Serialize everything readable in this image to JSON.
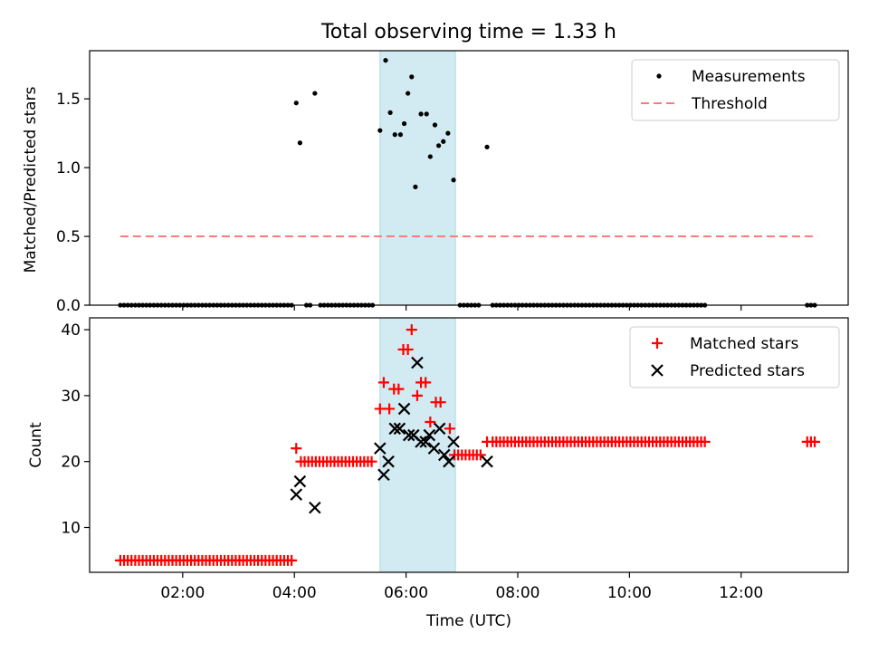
{
  "title": "Total observing time = 1.33 h",
  "chart_data": [
    {
      "type": "scatter",
      "panel": "top",
      "ylabel": "Matched/Predicted stars",
      "xlabel": "",
      "xlim": [
        "00:20",
        "13:55"
      ],
      "ylim": [
        0,
        1.85
      ],
      "yticks": [
        0.0,
        0.5,
        1.0,
        1.5
      ],
      "ytick_labels": [
        "0.0",
        "0.5",
        "1.0",
        "1.5"
      ],
      "legend_position": "top-right",
      "highlight_span": {
        "x0": "05:32",
        "x1": "06:53",
        "color": "#add8e6"
      },
      "series": [
        {
          "name": "Measurements",
          "kind": "scatter",
          "marker": "dot",
          "color": "#000000",
          "points": [
            [
              "04:02",
              1.47
            ],
            [
              "04:06",
              1.18
            ],
            [
              "04:22",
              1.54
            ],
            [
              "05:32",
              1.27
            ],
            [
              "05:38",
              1.78
            ],
            [
              "05:43",
              1.4
            ],
            [
              "05:48",
              1.24
            ],
            [
              "05:54",
              1.24
            ],
            [
              "05:58",
              1.32
            ],
            [
              "06:02",
              1.54
            ],
            [
              "06:06",
              1.66
            ],
            [
              "06:10",
              0.86
            ],
            [
              "06:16",
              1.39
            ],
            [
              "06:22",
              1.39
            ],
            [
              "06:26",
              1.08
            ],
            [
              "06:31",
              1.31
            ],
            [
              "06:35",
              1.16
            ],
            [
              "06:40",
              1.19
            ],
            [
              "06:45",
              1.25
            ],
            [
              "06:51",
              0.91
            ],
            [
              "07:27",
              1.15
            ]
          ],
          "zero_points": {
            "value": 0,
            "ranges": [
              {
                "start": "00:53",
                "end": "03:57",
                "step_min": 4
              },
              {
                "start": "04:13",
                "end": "04:18",
                "step_min": 4
              },
              {
                "start": "04:28",
                "end": "05:25",
                "step_min": 4
              },
              {
                "start": "06:58",
                "end": "07:21",
                "step_min": 4
              },
              {
                "start": "07:33",
                "end": "11:22",
                "step_min": 4
              },
              {
                "start": "13:11",
                "end": "13:22",
                "step_min": 4
              }
            ]
          }
        },
        {
          "name": "Threshold",
          "kind": "line",
          "dash": "dashed",
          "color": "#ff7b7b",
          "x": [
            "00:53",
            "13:22"
          ],
          "y": [
            0.5,
            0.5
          ]
        }
      ]
    },
    {
      "type": "scatter",
      "panel": "bottom",
      "ylabel": "Count",
      "xlabel": "Time (UTC)",
      "xlim": [
        "00:20",
        "13:55"
      ],
      "ylim": [
        3.2,
        41.8
      ],
      "yticks": [
        10,
        20,
        30,
        40
      ],
      "ytick_labels": [
        "10",
        "20",
        "30",
        "40"
      ],
      "xticks": [
        "02:00",
        "04:00",
        "06:00",
        "08:00",
        "10:00",
        "12:00"
      ],
      "xtick_labels": [
        "02:00",
        "04:00",
        "06:00",
        "08:00",
        "10:00",
        "12:00"
      ],
      "legend_position": "top-right",
      "highlight_span": {
        "x0": "05:32",
        "x1": "06:53",
        "color": "#add8e6"
      },
      "series": [
        {
          "name": "Matched stars",
          "kind": "scatter",
          "marker": "plus",
          "color": "#ff0000",
          "points": [
            [
              "04:02",
              22
            ],
            [
              "05:32",
              28
            ],
            [
              "05:36",
              32
            ],
            [
              "05:42",
              28
            ],
            [
              "05:47",
              31
            ],
            [
              "05:52",
              31
            ],
            [
              "05:57",
              37
            ],
            [
              "06:02",
              37
            ],
            [
              "06:06",
              40
            ],
            [
              "06:12",
              30
            ],
            [
              "06:16",
              32
            ],
            [
              "06:21",
              32
            ],
            [
              "06:26",
              26
            ],
            [
              "06:32",
              29
            ],
            [
              "06:37",
              29
            ],
            [
              "06:47",
              25
            ],
            [
              "07:27",
              23
            ]
          ],
          "constant_runs": [
            {
              "start": "00:53",
              "end": "03:57",
              "step_min": 4,
              "value": 5
            },
            {
              "start": "04:07",
              "end": "05:25",
              "step_min": 4,
              "value": 20
            },
            {
              "start": "06:52",
              "end": "07:20",
              "step_min": 4,
              "value": 21
            },
            {
              "start": "07:33",
              "end": "11:22",
              "step_min": 4,
              "value": 23
            },
            {
              "start": "13:11",
              "end": "13:22",
              "step_min": 4,
              "value": 23
            }
          ]
        },
        {
          "name": "Predicted stars",
          "kind": "scatter",
          "marker": "x",
          "color": "#000000",
          "points": [
            [
              "04:02",
              15
            ],
            [
              "04:06",
              17
            ],
            [
              "04:22",
              13
            ],
            [
              "05:32",
              22
            ],
            [
              "05:36",
              18
            ],
            [
              "05:41",
              20
            ],
            [
              "05:48",
              25
            ],
            [
              "05:53",
              25
            ],
            [
              "05:58",
              28
            ],
            [
              "06:03",
              24
            ],
            [
              "06:08",
              24
            ],
            [
              "06:12",
              35
            ],
            [
              "06:16",
              23
            ],
            [
              "06:21",
              23
            ],
            [
              "06:25",
              24
            ],
            [
              "06:30",
              22
            ],
            [
              "06:36",
              25
            ],
            [
              "06:41",
              21
            ],
            [
              "06:46",
              20
            ],
            [
              "06:51",
              23
            ],
            [
              "07:27",
              20
            ]
          ]
        }
      ]
    }
  ]
}
